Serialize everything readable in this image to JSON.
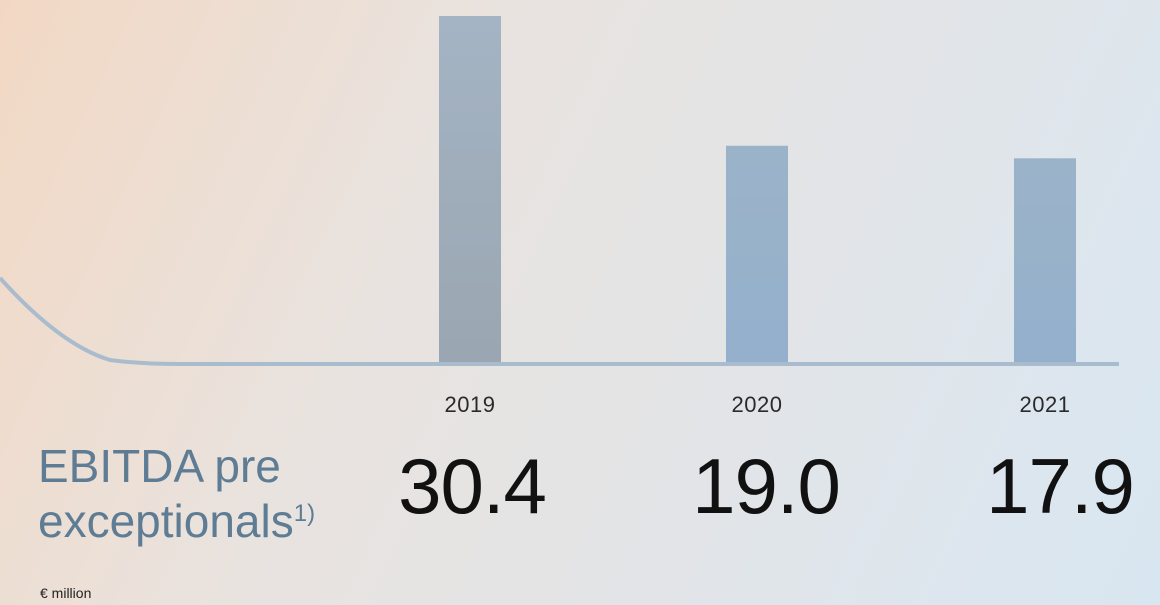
{
  "chart_data": {
    "type": "bar",
    "title_line1": "EBITDA pre",
    "title_line2": "exceptionals",
    "title_footnote": "1)",
    "unit": "€ million",
    "categories": [
      "2019",
      "2020",
      "2021"
    ],
    "values": [
      30.4,
      19.0,
      17.9
    ],
    "value_labels": [
      "30.4",
      "19.0",
      "17.9"
    ],
    "ylim": [
      0,
      30.4
    ],
    "grid": false,
    "colors": {
      "bar_top": "#a4b4c4",
      "bar_bottom_first": "#9aa6b1",
      "bar_bottom_other": "#94b0cc",
      "baseline": "#9fb8cc"
    }
  }
}
